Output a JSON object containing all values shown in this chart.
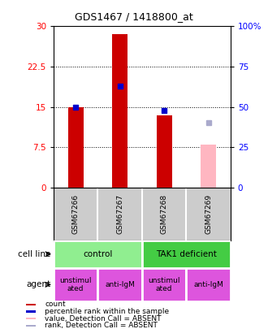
{
  "title": "GDS1467 / 1418800_at",
  "samples": [
    "GSM67266",
    "GSM67267",
    "GSM67268",
    "GSM67269"
  ],
  "count_values": [
    15.0,
    28.5,
    13.5,
    null
  ],
  "absent_value_bar": [
    null,
    null,
    null,
    8.0
  ],
  "bar_color_count": "#cc0000",
  "bar_color_absent_val": "#ffb6c1",
  "percentile_pct": [
    50.0,
    63.0,
    48.0,
    null
  ],
  "absent_rank_pct": [
    null,
    null,
    null,
    40.0
  ],
  "percentile_color": "#0000cc",
  "absent_rank_color": "#aaaacc",
  "ylim_left": [
    0,
    30
  ],
  "ylim_right": [
    0,
    100
  ],
  "yticks_left": [
    0,
    7.5,
    15,
    22.5,
    30
  ],
  "yticks_right": [
    0,
    25,
    50,
    75,
    100
  ],
  "ytick_labels_right": [
    "0",
    "25",
    "50",
    "75",
    "100%"
  ],
  "ytick_labels_left": [
    "0",
    "7.5",
    "15",
    "22.5",
    "30"
  ],
  "cell_line_groups": [
    {
      "label": "control",
      "cols": [
        0,
        1
      ],
      "color": "#90ee90"
    },
    {
      "label": "TAK1 deficient",
      "cols": [
        2,
        3
      ],
      "color": "#44cc44"
    }
  ],
  "agent_groups": [
    {
      "label": "unstimul\nated",
      "col": 0,
      "color": "#dd55dd"
    },
    {
      "label": "anti-IgM",
      "col": 1,
      "color": "#dd55dd"
    },
    {
      "label": "unstimul\nated",
      "col": 2,
      "color": "#dd55dd"
    },
    {
      "label": "anti-IgM",
      "col": 3,
      "color": "#dd55dd"
    }
  ],
  "legend_items": [
    {
      "label": "count",
      "color": "#cc0000"
    },
    {
      "label": "percentile rank within the sample",
      "color": "#0000cc"
    },
    {
      "label": "value, Detection Call = ABSENT",
      "color": "#ffb6c1"
    },
    {
      "label": "rank, Detection Call = ABSENT",
      "color": "#aaaacc"
    }
  ],
  "cell_line_label": "cell line",
  "agent_label": "agent",
  "bar_width": 0.35,
  "sample_bg_color": "#cccccc",
  "grid_color": "black",
  "grid_linestyle": ":"
}
